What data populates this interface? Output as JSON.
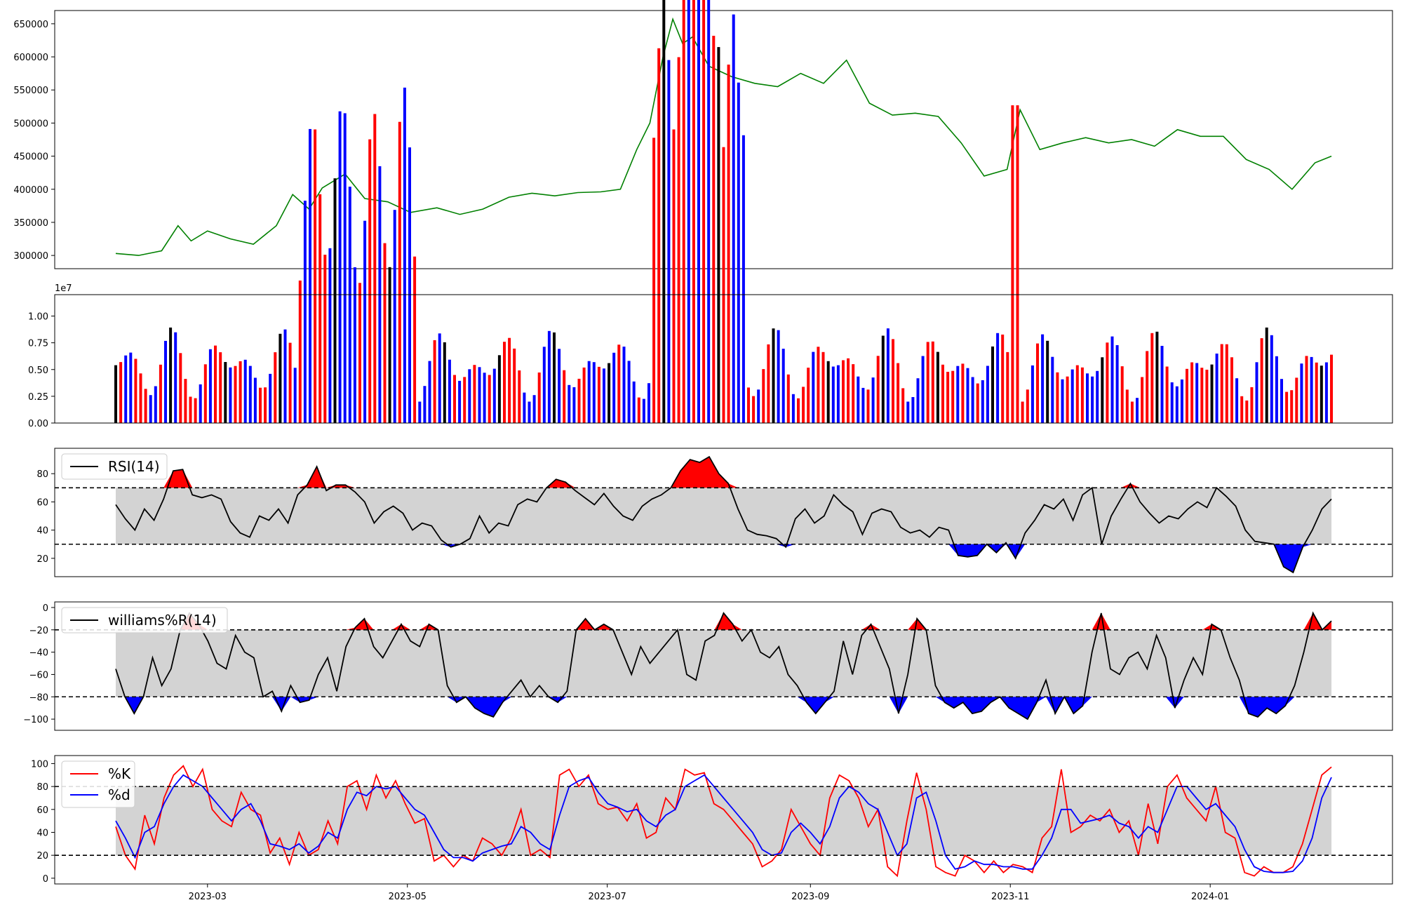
{
  "chart_data": [
    {
      "type": "line",
      "panel": "price",
      "color": "#008000",
      "ylim": [
        280000,
        670000
      ],
      "yticks": [
        300000,
        350000,
        400000,
        450000,
        500000,
        550000,
        600000,
        650000
      ],
      "ytick_labels": [
        "300000",
        "350000",
        "400000",
        "450000",
        "500000",
        "550000",
        "600000",
        "650000"
      ],
      "series": [
        {
          "x": [
            "2023-02-01",
            "2023-02-08",
            "2023-02-15",
            "2023-02-20",
            "2023-02-24",
            "2023-03-01",
            "2023-03-08",
            "2023-03-15",
            "2023-03-22",
            "2023-03-27",
            "2023-04-01",
            "2023-04-05",
            "2023-04-12",
            "2023-04-18",
            "2023-04-25",
            "2023-05-02",
            "2023-05-10",
            "2023-05-17",
            "2023-05-24",
            "2023-06-01",
            "2023-06-08",
            "2023-06-15",
            "2023-06-22",
            "2023-06-29",
            "2023-07-05",
            "2023-07-10",
            "2023-07-14",
            "2023-07-18",
            "2023-07-21",
            "2023-07-24",
            "2023-07-27",
            "2023-08-01",
            "2023-08-08",
            "2023-08-15",
            "2023-08-22",
            "2023-08-29",
            "2023-09-05",
            "2023-09-12",
            "2023-09-19",
            "2023-09-26",
            "2023-10-03",
            "2023-10-10",
            "2023-10-17",
            "2023-10-24",
            "2023-10-31",
            "2023-11-04",
            "2023-11-10",
            "2023-11-17",
            "2023-11-24",
            "2023-12-01",
            "2023-12-08",
            "2023-12-15",
            "2023-12-22",
            "2023-12-29",
            "2024-01-05",
            "2024-01-12",
            "2024-01-19",
            "2024-01-26",
            "2024-02-02",
            "2024-02-07"
          ],
          "y": [
            303000,
            300000,
            307000,
            345000,
            322000,
            337000,
            325000,
            317000,
            345000,
            392000,
            370000,
            402000,
            423000,
            386000,
            381000,
            365000,
            372000,
            362000,
            370000,
            388000,
            394000,
            390000,
            395000,
            396000,
            400000,
            460000,
            500000,
            600000,
            657000,
            620000,
            630000,
            586000,
            570000,
            560000,
            555000,
            575000,
            560000,
            595000,
            530000,
            512000,
            515000,
            510000,
            470000,
            420000,
            430000,
            520000,
            460000,
            470000,
            478000,
            470000,
            475000,
            465000,
            490000,
            480000,
            480000,
            445000,
            430000,
            400000,
            440000,
            450000
          ]
        }
      ]
    },
    {
      "type": "bar",
      "panel": "volume",
      "scale_label": "1e7",
      "ylim": [
        0,
        1.2
      ],
      "yticks": [
        0,
        0.25,
        0.5,
        0.75,
        1.0
      ],
      "ytick_labels": [
        "0.00",
        "0.25",
        "0.50",
        "0.75",
        "1.00"
      ],
      "colors": {
        "up": "#ff0000",
        "down": "#0000ff",
        "flat": "#000000"
      }
    },
    {
      "type": "line",
      "panel": "rsi",
      "legend": "RSI(14)",
      "upper": 70,
      "lower": 30,
      "ylim": [
        7,
        98
      ],
      "yticks": [
        20,
        40,
        60,
        80
      ],
      "ytick_labels": [
        "20",
        "40",
        "60",
        "80"
      ],
      "series": [
        {
          "name": "RSI(14)",
          "y": [
            58,
            48,
            40,
            55,
            47,
            62,
            82,
            83,
            65,
            63,
            65,
            62,
            46,
            38,
            35,
            50,
            47,
            55,
            45,
            65,
            72,
            85,
            68,
            72,
            72,
            67,
            60,
            45,
            53,
            57,
            52,
            40,
            45,
            43,
            33,
            28,
            30,
            34,
            50,
            38,
            45,
            43,
            58,
            62,
            60,
            70,
            76,
            74,
            68,
            63,
            58,
            66,
            57,
            50,
            47,
            57,
            62,
            65,
            70,
            82,
            90,
            88,
            92,
            80,
            73,
            55,
            40,
            37,
            36,
            34,
            28,
            48,
            55,
            45,
            50,
            65,
            58,
            53,
            37,
            52,
            55,
            53,
            42,
            38,
            40,
            35,
            42,
            40,
            22,
            21,
            22,
            30,
            24,
            31,
            20,
            38,
            47,
            58,
            55,
            62,
            47,
            65,
            70,
            30,
            50,
            62,
            73,
            60,
            52,
            45,
            50,
            48,
            55,
            60,
            56,
            70,
            64,
            57,
            40,
            32,
            31,
            30,
            14,
            10,
            28,
            40,
            55,
            62
          ]
        }
      ]
    },
    {
      "type": "line",
      "panel": "williams",
      "legend": "williams%R(14)",
      "upper": -20,
      "lower": -80,
      "ylim": [
        -110,
        5
      ],
      "yticks": [
        -100,
        -80,
        -60,
        -40,
        -20,
        0
      ],
      "ytick_labels": [
        "−100",
        "−80",
        "−60",
        "−40",
        "−20",
        "0"
      ],
      "series": [
        {
          "name": "williams%R(14)",
          "y": [
            -55,
            -80,
            -95,
            -80,
            -45,
            -70,
            -55,
            -20,
            -5,
            -15,
            -30,
            -50,
            -55,
            -25,
            -40,
            -45,
            -80,
            -75,
            -93,
            -70,
            -85,
            -83,
            -60,
            -45,
            -75,
            -35,
            -18,
            -10,
            -35,
            -45,
            -30,
            -15,
            -30,
            -35,
            -15,
            -20,
            -70,
            -85,
            -80,
            -90,
            -95,
            -98,
            -85,
            -75,
            -65,
            -80,
            -70,
            -80,
            -85,
            -75,
            -20,
            -10,
            -20,
            -15,
            -20,
            -40,
            -60,
            -35,
            -50,
            -40,
            -30,
            -20,
            -60,
            -65,
            -30,
            -25,
            -5,
            -15,
            -30,
            -20,
            -40,
            -45,
            -35,
            -60,
            -70,
            -85,
            -95,
            -85,
            -75,
            -30,
            -60,
            -25,
            -15,
            -35,
            -55,
            -95,
            -60,
            -10,
            -20,
            -70,
            -85,
            -90,
            -85,
            -95,
            -93,
            -85,
            -80,
            -90,
            -95,
            -100,
            -85,
            -65,
            -95,
            -80,
            -95,
            -88,
            -40,
            -5,
            -55,
            -60,
            -45,
            -40,
            -55,
            -25,
            -45,
            -90,
            -65,
            -45,
            -60,
            -15,
            -20,
            -45,
            -65,
            -95,
            -98,
            -90,
            -95,
            -88,
            -70,
            -40,
            -5,
            -20,
            -12
          ]
        }
      ]
    },
    {
      "type": "line",
      "panel": "stochastic",
      "upper": 80,
      "lower": 20,
      "ylim": [
        -5,
        107
      ],
      "yticks": [
        0,
        20,
        40,
        60,
        80,
        100
      ],
      "ytick_labels": [
        "0",
        "20",
        "40",
        "60",
        "80",
        "100"
      ],
      "series": [
        {
          "name": "%K",
          "color": "#ff0000",
          "y": [
            45,
            20,
            8,
            55,
            30,
            70,
            90,
            98,
            80,
            95,
            60,
            50,
            45,
            75,
            60,
            55,
            22,
            35,
            12,
            40,
            20,
            25,
            50,
            30,
            80,
            85,
            60,
            90,
            70,
            85,
            65,
            48,
            52,
            15,
            20,
            10,
            20,
            15,
            35,
            30,
            20,
            35,
            60,
            20,
            25,
            18,
            90,
            95,
            80,
            90,
            65,
            60,
            62,
            50,
            65,
            35,
            40,
            70,
            60,
            95,
            90,
            92,
            65,
            60,
            50,
            40,
            30,
            10,
            15,
            25,
            60,
            45,
            30,
            20,
            70,
            90,
            85,
            70,
            45,
            60,
            10,
            2,
            50,
            92,
            60,
            10,
            5,
            2,
            20,
            15,
            5,
            15,
            5,
            12,
            10,
            5,
            35,
            45,
            95,
            40,
            45,
            55,
            50,
            60,
            40,
            50,
            20,
            65,
            30,
            80,
            90,
            70,
            60,
            50,
            80,
            40,
            35,
            5,
            2,
            10,
            5,
            5,
            10,
            30,
            60,
            90,
            97
          ]
        },
        {
          "name": "%d",
          "color": "#0000ff",
          "y": [
            50,
            35,
            18,
            40,
            45,
            65,
            80,
            90,
            85,
            80,
            70,
            60,
            50,
            60,
            65,
            50,
            30,
            28,
            25,
            30,
            22,
            28,
            40,
            35,
            60,
            75,
            72,
            80,
            78,
            80,
            70,
            60,
            55,
            40,
            25,
            18,
            18,
            15,
            22,
            25,
            28,
            30,
            45,
            40,
            30,
            25,
            55,
            80,
            85,
            88,
            75,
            65,
            62,
            58,
            60,
            50,
            45,
            55,
            60,
            80,
            85,
            90,
            80,
            70,
            60,
            50,
            40,
            25,
            20,
            22,
            40,
            48,
            40,
            30,
            45,
            70,
            80,
            75,
            65,
            60,
            40,
            20,
            30,
            70,
            75,
            50,
            20,
            8,
            10,
            15,
            12,
            12,
            10,
            10,
            8,
            8,
            20,
            35,
            60,
            60,
            48,
            50,
            52,
            55,
            48,
            45,
            35,
            45,
            40,
            60,
            80,
            80,
            70,
            60,
            65,
            55,
            45,
            25,
            10,
            6,
            5,
            5,
            6,
            15,
            35,
            70,
            88
          ]
        }
      ]
    }
  ],
  "x_axis": {
    "start": "2023-02-01",
    "end": "2024-02-07",
    "tick_labels": [
      "2023-03",
      "2023-05",
      "2023-07",
      "2023-09",
      "2023-11",
      "2024-01"
    ],
    "tick_dates": [
      "2023-03-01",
      "2023-05-01",
      "2023-07-01",
      "2023-09-01",
      "2023-11-01",
      "2024-01-01"
    ]
  },
  "style": {
    "line_color": "#000000",
    "band_fill": "#d3d3d3",
    "over_fill": "#ff0000",
    "under_fill": "#0000ff",
    "threshold_dash": "#000000"
  }
}
